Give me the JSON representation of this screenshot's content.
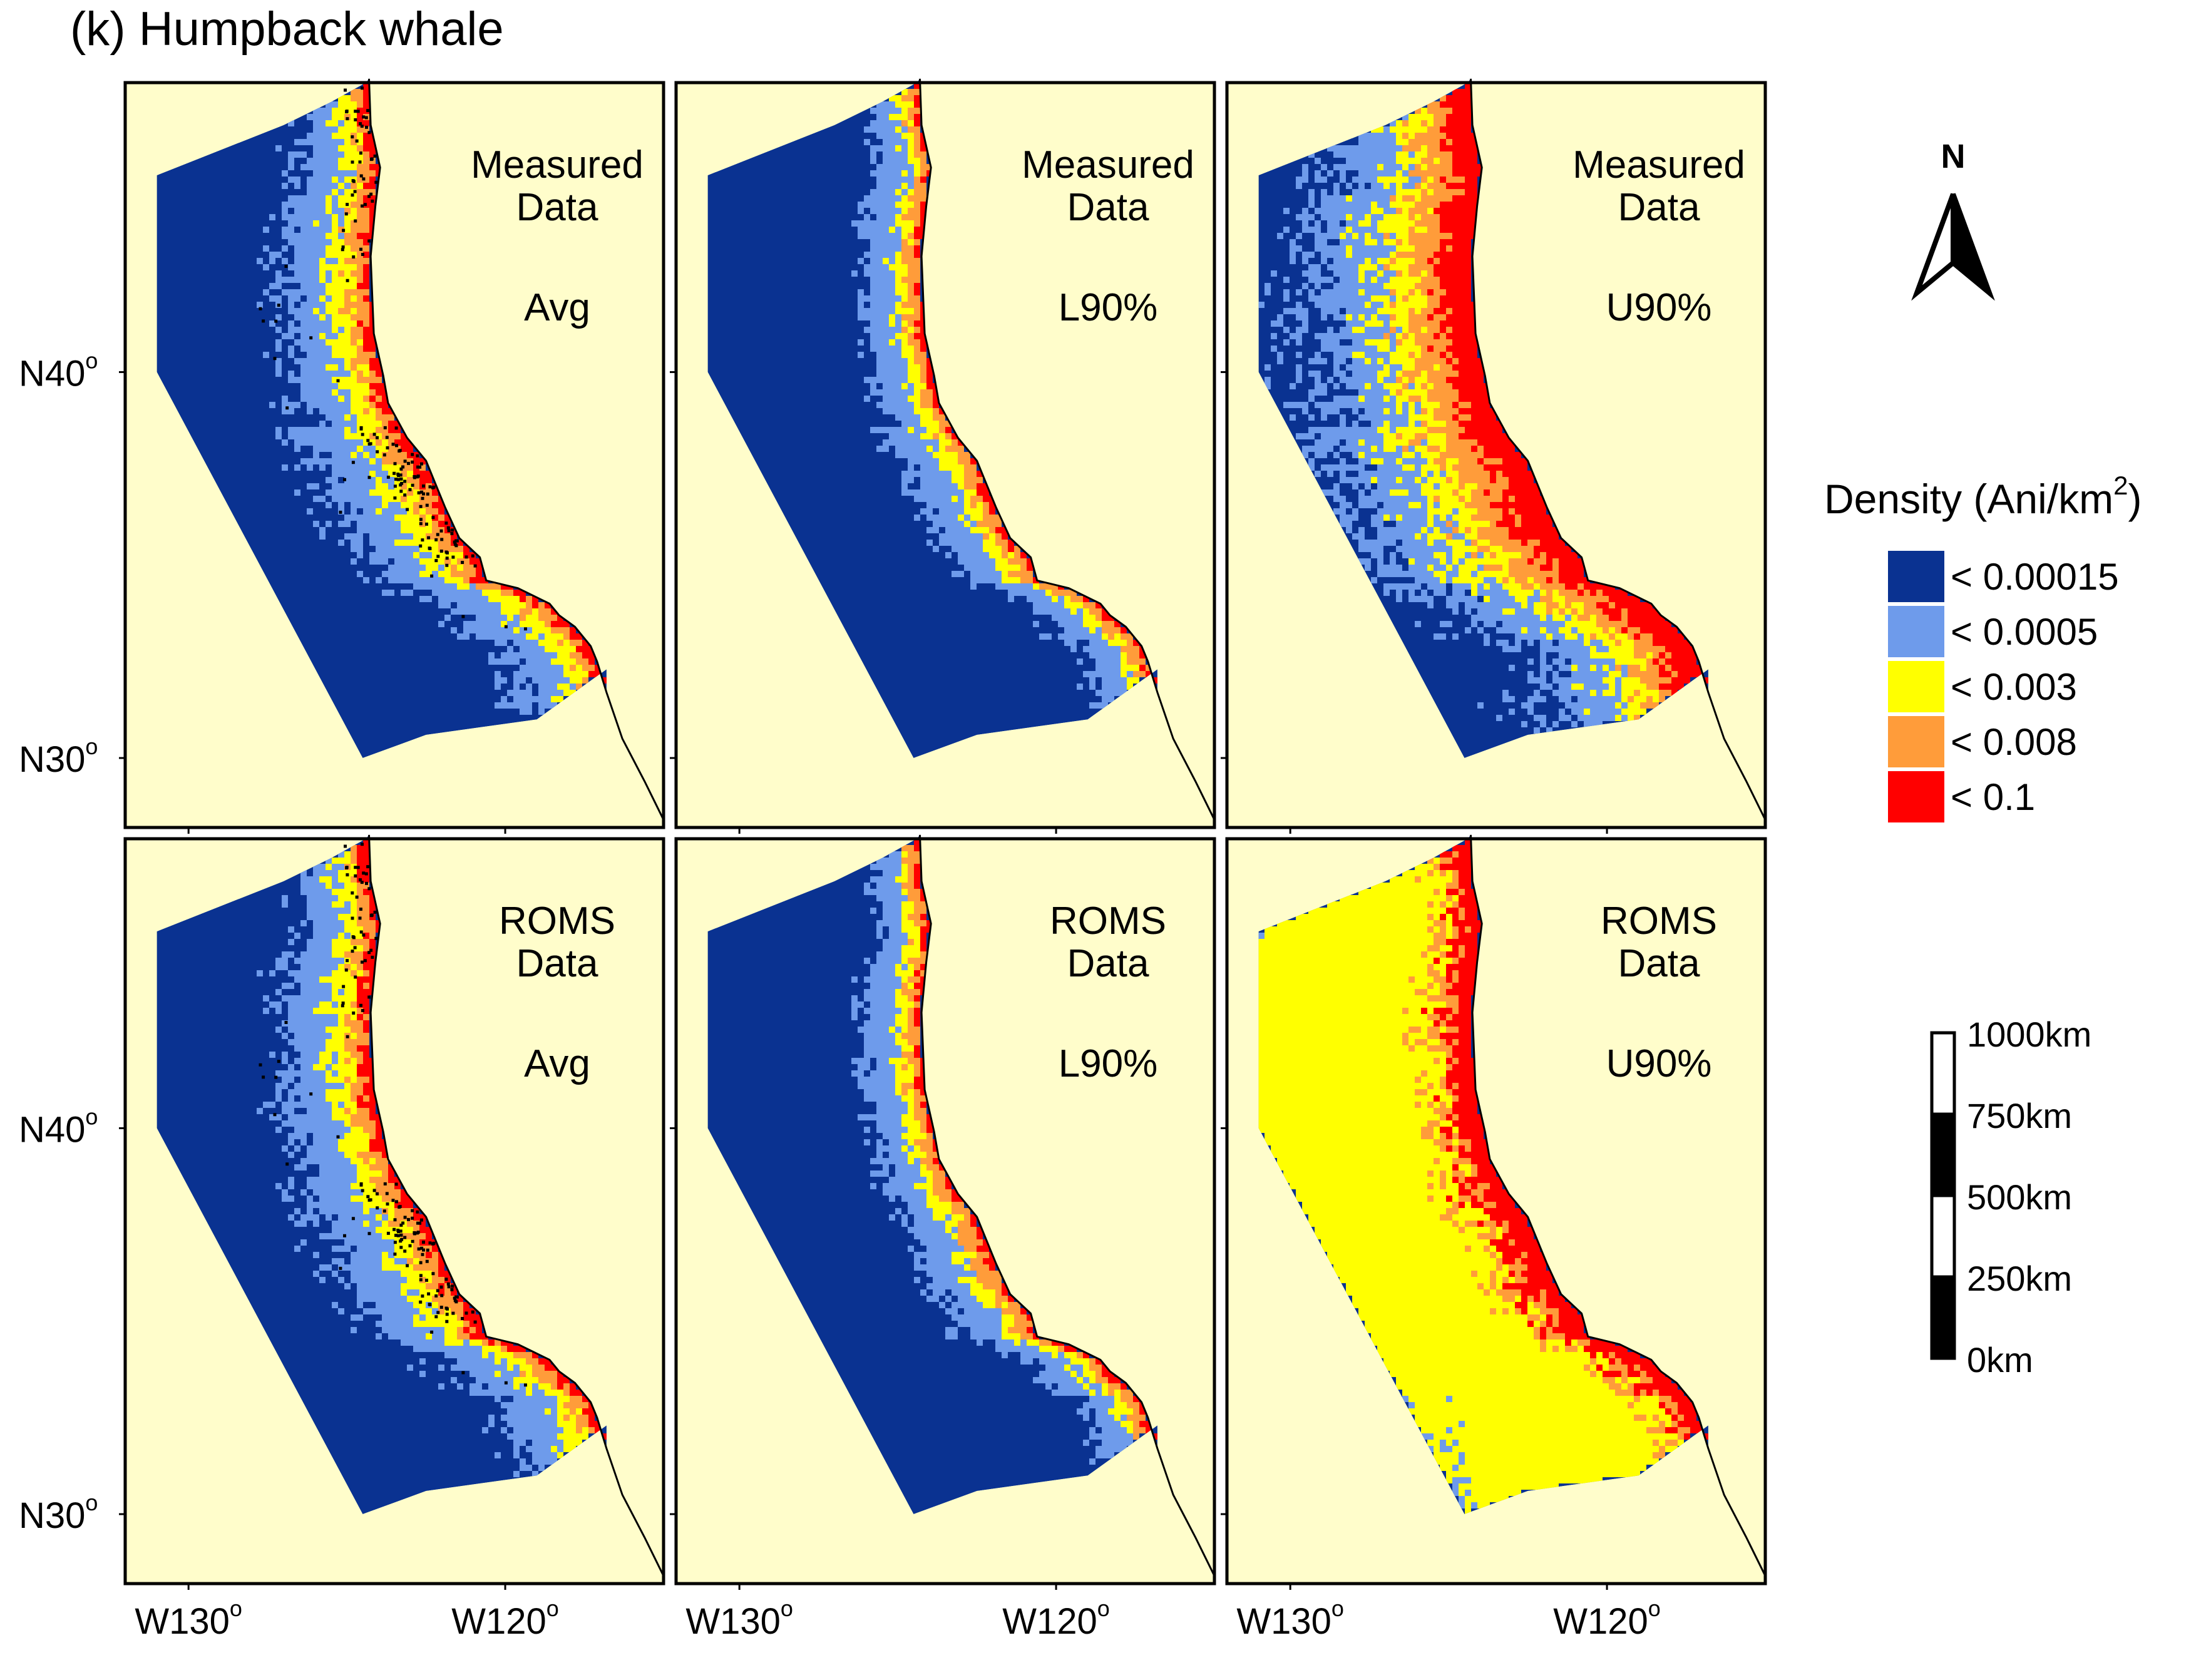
{
  "figure": {
    "title": "(k)  Humpback whale"
  },
  "colors": {
    "land": "#FFFDCB",
    "frame": "#000000",
    "white": "#FFFFFF"
  },
  "axes": {
    "lat_labels": [
      {
        "value": 40,
        "label": "N40",
        "degree": "o"
      },
      {
        "value": 30,
        "label": "N30",
        "degree": "o"
      }
    ],
    "lon_labels": [
      {
        "value": -130,
        "label": "W130",
        "degree": "o"
      },
      {
        "value": -120,
        "label": "W120",
        "degree": "o"
      }
    ]
  },
  "panels": [
    {
      "id": "measured-avg",
      "row": 0,
      "col": 0,
      "data_lines": [
        "Measured",
        "Data"
      ],
      "stat": "Avg",
      "pattern": "avg",
      "sightings": true
    },
    {
      "id": "measured-l90",
      "row": 0,
      "col": 1,
      "data_lines": [
        "Measured",
        "Data"
      ],
      "stat": "L90%",
      "pattern": "low",
      "sightings": false
    },
    {
      "id": "measured-u90",
      "row": 0,
      "col": 2,
      "data_lines": [
        "Measured",
        "Data"
      ],
      "stat": "U90%",
      "pattern": "high",
      "sightings": false
    },
    {
      "id": "roms-avg",
      "row": 1,
      "col": 0,
      "data_lines": [
        "ROMS",
        "Data"
      ],
      "stat": "Avg",
      "pattern": "avg",
      "sightings": true
    },
    {
      "id": "roms-l90",
      "row": 1,
      "col": 1,
      "data_lines": [
        "ROMS",
        "Data"
      ],
      "stat": "L90%",
      "pattern": "low",
      "sightings": false
    },
    {
      "id": "roms-u90",
      "row": 1,
      "col": 2,
      "data_lines": [
        "ROMS",
        "Data"
      ],
      "stat": "U90%",
      "pattern": "veryhigh",
      "sightings": false
    }
  ],
  "legend": {
    "title_main": "Density (Ani/km",
    "title_sup": "2",
    "title_close": ")",
    "items": [
      {
        "label": "< 0.00015",
        "color": "#0A3291"
      },
      {
        "label": "< 0.0005",
        "color": "#6E9BEB"
      },
      {
        "label": "< 0.003",
        "color": "#FFFF00"
      },
      {
        "label": "< 0.008",
        "color": "#FF9C3A"
      },
      {
        "label": "< 0.1",
        "color": "#FF0000"
      }
    ]
  },
  "north_arrow": {
    "label": "N"
  },
  "scale_bar": {
    "labels": [
      "1000km",
      "750km",
      "500km",
      "250km",
      "0km"
    ]
  }
}
